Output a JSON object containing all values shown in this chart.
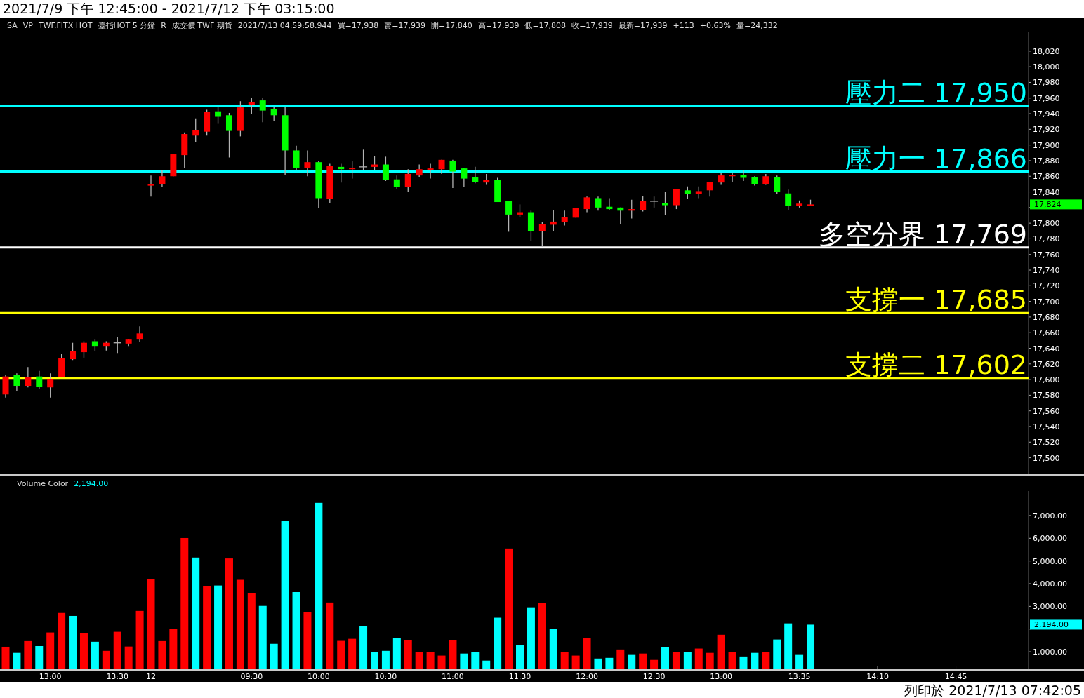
{
  "chart_data": [
    {
      "type": "candlestick",
      "title": "2021/7/9 下午 12:45:00 - 2021/7/12 下午 03:15:00",
      "tick_labels": "y",
      "categories": [
        null,
        null,
        null,
        null,
        null,
        null,
        null,
        null,
        null,
        null,
        null,
        null,
        null,
        null,
        null,
        null,
        null,
        null,
        null,
        null,
        null,
        null,
        null,
        null,
        null,
        null,
        null,
        null,
        null,
        null,
        null,
        null,
        null,
        null,
        null,
        null,
        null,
        null,
        null,
        null,
        null,
        null,
        null,
        null,
        null,
        null,
        null,
        null,
        null,
        null,
        null,
        null,
        null,
        null,
        null,
        null,
        null,
        null,
        null,
        null,
        null,
        null,
        null,
        null,
        null,
        null,
        null,
        null,
        null,
        null,
        null,
        null,
        null,
        null,
        null,
        null,
        null,
        null,
        null,
        null,
        null,
        null,
        null,
        null,
        null,
        null,
        null,
        null,
        null,
        null,
        null,
        null
      ],
      "ohlc": [
        [
          17581,
          17606,
          17577,
          17604
        ],
        [
          17606,
          17608,
          17585,
          17592
        ],
        [
          17592,
          17616,
          17590,
          17603
        ],
        [
          17604,
          17611,
          17588,
          17591
        ],
        [
          17590,
          17608,
          17577,
          17601
        ],
        [
          17603,
          17633,
          17603,
          17627
        ],
        [
          17626,
          17647,
          17625,
          17636
        ],
        [
          17635,
          17649,
          17628,
          17647
        ],
        [
          17649,
          17652,
          17636,
          17643
        ],
        [
          17643,
          17649,
          17637,
          17647
        ],
        [
          17647,
          17654,
          17634,
          17647
        ],
        [
          17646,
          17652,
          17643,
          17652
        ],
        [
          17652,
          17668,
          17648,
          17659
        ],
        [
          17848,
          17861,
          17834,
          17850
        ],
        [
          17850,
          17868,
          17846,
          17860
        ],
        [
          17860,
          17888,
          17860,
          17888
        ],
        [
          17887,
          17916,
          17871,
          17914
        ],
        [
          17912,
          17934,
          17904,
          17919
        ],
        [
          17917,
          17945,
          17912,
          17942
        ],
        [
          17943,
          17949,
          17927,
          17936
        ],
        [
          17938,
          17941,
          17884,
          17918
        ],
        [
          17918,
          17956,
          17911,
          17948
        ],
        [
          17951,
          17960,
          17940,
          17955
        ],
        [
          17957,
          17960,
          17929,
          17944
        ],
        [
          17946,
          17949,
          17931,
          17938
        ],
        [
          17938,
          17949,
          17862,
          17893
        ],
        [
          17893,
          17899,
          17868,
          17871
        ],
        [
          17871,
          17893,
          17860,
          17878
        ],
        [
          17878,
          17880,
          17819,
          17832
        ],
        [
          17831,
          17876,
          17826,
          17873
        ],
        [
          17872,
          17876,
          17852,
          17869
        ],
        [
          17869,
          17879,
          17857,
          17871
        ],
        [
          17872,
          17894,
          17868,
          17872
        ],
        [
          17872,
          17886,
          17868,
          17875
        ],
        [
          17875,
          17885,
          17854,
          17855
        ],
        [
          17856,
          17861,
          17844,
          17846
        ],
        [
          17846,
          17869,
          17840,
          17863
        ],
        [
          17861,
          17875,
          17859,
          17869
        ],
        [
          17868,
          17876,
          17857,
          17870
        ],
        [
          17869,
          17881,
          17863,
          17881
        ],
        [
          17880,
          17881,
          17845,
          17866
        ],
        [
          17870,
          17870,
          17846,
          17857
        ],
        [
          17859,
          17872,
          17851,
          17853
        ],
        [
          17852,
          17863,
          17849,
          17855
        ],
        [
          17855,
          17858,
          17827,
          17827
        ],
        [
          17828,
          17828,
          17789,
          17811
        ],
        [
          17811,
          17824,
          17808,
          17814
        ],
        [
          17814,
          17816,
          17777,
          17790
        ],
        [
          17790,
          17801,
          17770,
          17799
        ],
        [
          17798,
          17817,
          17790,
          17802
        ],
        [
          17801,
          17816,
          17797,
          17808
        ],
        [
          17807,
          17819,
          17807,
          17819
        ],
        [
          17818,
          17834,
          17814,
          17833
        ],
        [
          17832,
          17834,
          17816,
          17820
        ],
        [
          17821,
          17832,
          17817,
          17818
        ],
        [
          17820,
          17820,
          17799,
          17816
        ],
        [
          17816,
          17830,
          17806,
          17818
        ],
        [
          17817,
          17835,
          17815,
          17828
        ],
        [
          17828,
          17834,
          17820,
          17828
        ],
        [
          17826,
          17840,
          17810,
          17823
        ],
        [
          17823,
          17844,
          17818,
          17844
        ],
        [
          17842,
          17847,
          17831,
          17837
        ],
        [
          17837,
          17847,
          17832,
          17841
        ],
        [
          17842,
          17853,
          17834,
          17853
        ],
        [
          17852,
          17864,
          17849,
          17861
        ],
        [
          17860,
          17865,
          17853,
          17862
        ],
        [
          17862,
          17868,
          17854,
          17858
        ],
        [
          17859,
          17860,
          17848,
          17850
        ],
        [
          17850,
          17863,
          17849,
          17860
        ],
        [
          17859,
          17861,
          17837,
          17840
        ],
        [
          17838,
          17843,
          17817,
          17822
        ],
        [
          17822,
          17829,
          17820,
          17825
        ],
        [
          17823,
          17830,
          17823,
          17824
        ],
        null,
        null,
        null,
        null,
        null,
        null,
        null,
        null,
        null,
        null,
        null,
        null,
        null,
        null,
        null,
        null,
        null,
        null,
        null
      ],
      "colors": [
        "#ff0000",
        "#00ff00",
        "#ff0000",
        "#00ff00",
        "#ff0000",
        "#ff0000",
        "#ff0000",
        "#ff0000",
        "#00ff00",
        "#ff0000",
        "#b4b4b4",
        "#ff0000",
        "#ff0000",
        "#ff0000",
        "#ff0000",
        "#ff0000",
        "#ff0000",
        "#ff0000",
        "#ff0000",
        "#00ff00",
        "#00ff00",
        "#ff0000",
        "#ff0000",
        "#00ff00",
        "#00ff00",
        "#00ff00",
        "#00ff00",
        "#ff0000",
        "#00ff00",
        "#ff0000",
        "#00ff00",
        "#ff0000",
        "#b4b4b4",
        "#ff0000",
        "#00ff00",
        "#00ff00",
        "#ff0000",
        "#ff0000",
        "#ff0000",
        "#ff0000",
        "#00ff00",
        "#00ff00",
        "#00ff00",
        "#ff0000",
        "#00ff00",
        "#00ff00",
        "#ff0000",
        "#00ff00",
        "#ff0000",
        "#ff0000",
        "#ff0000",
        "#ff0000",
        "#ff0000",
        "#00ff00",
        "#00ff00",
        "#00ff00",
        "#ff0000",
        "#ff0000",
        "#b4b4b4",
        "#00ff00",
        "#ff0000",
        "#00ff00",
        "#ff0000",
        "#ff0000",
        "#ff0000",
        "#ff0000",
        "#00ff00",
        "#00ff00",
        "#ff0000",
        "#00ff00",
        "#00ff00",
        "#ff0000",
        "#ff0000",
        null,
        null,
        null,
        null,
        null,
        null,
        null,
        null,
        null,
        null,
        null,
        null,
        null,
        null,
        null,
        null,
        null,
        null,
        null
      ],
      "ylim": [
        17479,
        18045
      ],
      "yticks": [
        {
          "value": 17500,
          "label": "17,500"
        },
        {
          "value": 17520,
          "label": "17,520"
        },
        {
          "value": 17540,
          "label": "17,540"
        },
        {
          "value": 17560,
          "label": "17,560"
        },
        {
          "value": 17580,
          "label": "17,580"
        },
        {
          "value": 17600,
          "label": "17,600"
        },
        {
          "value": 17620,
          "label": "17,620"
        },
        {
          "value": 17640,
          "label": "17,640"
        },
        {
          "value": 17660,
          "label": "17,660"
        },
        {
          "value": 17680,
          "label": "17,680"
        },
        {
          "value": 17700,
          "label": "17,700"
        },
        {
          "value": 17720,
          "label": "17,720"
        },
        {
          "value": 17740,
          "label": "17,740"
        },
        {
          "value": 17760,
          "label": "17,760"
        },
        {
          "value": 17780,
          "label": "17,780"
        },
        {
          "value": 17800,
          "label": "17,800"
        },
        {
          "value": 17820,
          "label": null
        },
        {
          "value": 17840,
          "label": "17,840"
        },
        {
          "value": 17860,
          "label": "17,860"
        },
        {
          "value": 17880,
          "label": "17,880"
        },
        {
          "value": 17900,
          "label": "17,900"
        },
        {
          "value": 17920,
          "label": "17,920"
        },
        {
          "value": 17940,
          "label": "17,940"
        },
        {
          "value": 17960,
          "label": "17,960"
        },
        {
          "value": 17980,
          "label": "17,980"
        },
        {
          "value": 18000,
          "label": "18,000"
        },
        {
          "value": 18020,
          "label": "18,020"
        }
      ],
      "ref_lines": [
        {
          "axis": "y",
          "value": 17950,
          "label": "壓力二 17,950",
          "color": "#00ffff"
        },
        {
          "axis": "y",
          "value": 17866,
          "label": "壓力一 17,866",
          "color": "#00ffff"
        },
        {
          "axis": "y",
          "value": 17769,
          "label": "多空分界 17,769",
          "color": "#ffffff"
        },
        {
          "axis": "y",
          "value": 17685,
          "label": "支撐一 17,685",
          "color": "#ffff00"
        },
        {
          "axis": "y",
          "value": 17602,
          "label": "支撐二 17,602",
          "color": "#ffff00"
        }
      ],
      "annotations": [
        "SA",
        "VP",
        "TWF.FITX HOT",
        "臺指HOT 5 分鐘",
        "R",
        "成交價 TWF 期貨",
        "2021/7/13 04:59:58.944",
        "買=17,938",
        "賣=17,939",
        "開=17,840",
        "高=17,939",
        "低=17,808",
        "收=17,939",
        "最新=17,939",
        "+113",
        "+0.63%",
        "量=24,332",
        "17,824"
      ]
    },
    {
      "type": "bar",
      "categories": [
        null,
        null,
        null,
        null,
        "13:00",
        null,
        null,
        null,
        null,
        null,
        "13:30",
        null,
        null,
        "12",
        null,
        null,
        null,
        null,
        null,
        null,
        null,
        null,
        "09:30",
        null,
        null,
        null,
        null,
        null,
        "10:00",
        null,
        null,
        null,
        null,
        null,
        "10:30",
        null,
        null,
        null,
        null,
        null,
        "11:00",
        null,
        null,
        null,
        null,
        null,
        "11:30",
        null,
        null,
        null,
        null,
        null,
        "12:00",
        null,
        null,
        null,
        null,
        null,
        "12:30",
        null,
        null,
        null,
        null,
        null,
        "13:00",
        null,
        null,
        null,
        null,
        null,
        null,
        "13:35",
        null,
        null,
        null,
        null,
        null,
        null,
        "14:10",
        null,
        null,
        null,
        null,
        null,
        null,
        "14:45",
        null,
        null,
        null,
        null,
        null,
        null
      ],
      "values": [
        1220,
        950,
        1470,
        1250,
        1850,
        2710,
        2580,
        1810,
        1440,
        1040,
        1880,
        1230,
        2800,
        4200,
        1470,
        2000,
        6010,
        5150,
        3880,
        3920,
        5110,
        4170,
        3570,
        3020,
        1350,
        6760,
        3630,
        2740,
        7560,
        3170,
        1480,
        1570,
        2120,
        1000,
        1040,
        1620,
        1500,
        980,
        980,
        830,
        1500,
        920,
        980,
        610,
        2500,
        5550,
        1290,
        2960,
        3140,
        2000,
        1000,
        830,
        1600,
        700,
        730,
        1100,
        890,
        920,
        640,
        1190,
        1000,
        980,
        1140,
        950,
        1750,
        980,
        790,
        950,
        1000,
        1540,
        2250,
        890,
        2194,
        null,
        null,
        null,
        null,
        null,
        null,
        null,
        null,
        null,
        null,
        null,
        null,
        null,
        null,
        null,
        null,
        null,
        null,
        null
      ],
      "colors": [
        "#ff0000",
        "#00ffff",
        "#ff0000",
        "#00ffff",
        "#ff0000",
        "#ff0000",
        "#00ffff",
        "#ff0000",
        "#00ffff",
        "#ff0000",
        "#ff0000",
        "#ff0000",
        "#ff0000",
        "#ff0000",
        "#ff0000",
        "#ff0000",
        "#ff0000",
        "#00ffff",
        "#ff0000",
        "#00ffff",
        "#ff0000",
        "#ff0000",
        "#ff0000",
        "#00ffff",
        "#00ffff",
        "#00ffff",
        "#00ffff",
        "#ff0000",
        "#00ffff",
        "#ff0000",
        "#ff0000",
        "#ff0000",
        "#00ffff",
        "#00ffff",
        "#00ffff",
        "#00ffff",
        "#ff0000",
        "#ff0000",
        "#ff0000",
        "#ff0000",
        "#ff0000",
        "#00ffff",
        "#00ffff",
        "#00ffff",
        "#00ffff",
        "#ff0000",
        "#00ffff",
        "#00ffff",
        "#ff0000",
        "#00ffff",
        "#ff0000",
        "#ff0000",
        "#ff0000",
        "#00ffff",
        "#00ffff",
        "#ff0000",
        "#00ffff",
        "#ff0000",
        "#ff0000",
        "#00ffff",
        "#ff0000",
        "#00ffff",
        "#ff0000",
        "#ff0000",
        "#ff0000",
        "#ff0000",
        "#00ffff",
        "#00ffff",
        "#ff0000",
        "#00ffff",
        "#00ffff",
        "#00ffff",
        "#00ffff",
        null,
        null,
        null,
        null,
        null,
        null,
        null,
        null,
        null,
        null,
        null,
        null,
        null,
        null,
        null,
        null,
        null,
        null,
        null
      ],
      "ylim": [
        230,
        8080
      ],
      "yticks": [
        {
          "value": 1000,
          "label": "1,000.00"
        },
        {
          "value": 2000,
          "label": null
        },
        {
          "value": 3000,
          "label": "3,000.00"
        },
        {
          "value": 4000,
          "label": "4,000.00"
        },
        {
          "value": 5000,
          "label": "5,000.00"
        },
        {
          "value": 6000,
          "label": "6,000.00"
        },
        {
          "value": 7000,
          "label": "7,000.00"
        }
      ],
      "annotations": [
        "Volume Color",
        "2,194.00",
        "2,194.00",
        "列印於 2021/7/13 07:42:05"
      ]
    }
  ]
}
